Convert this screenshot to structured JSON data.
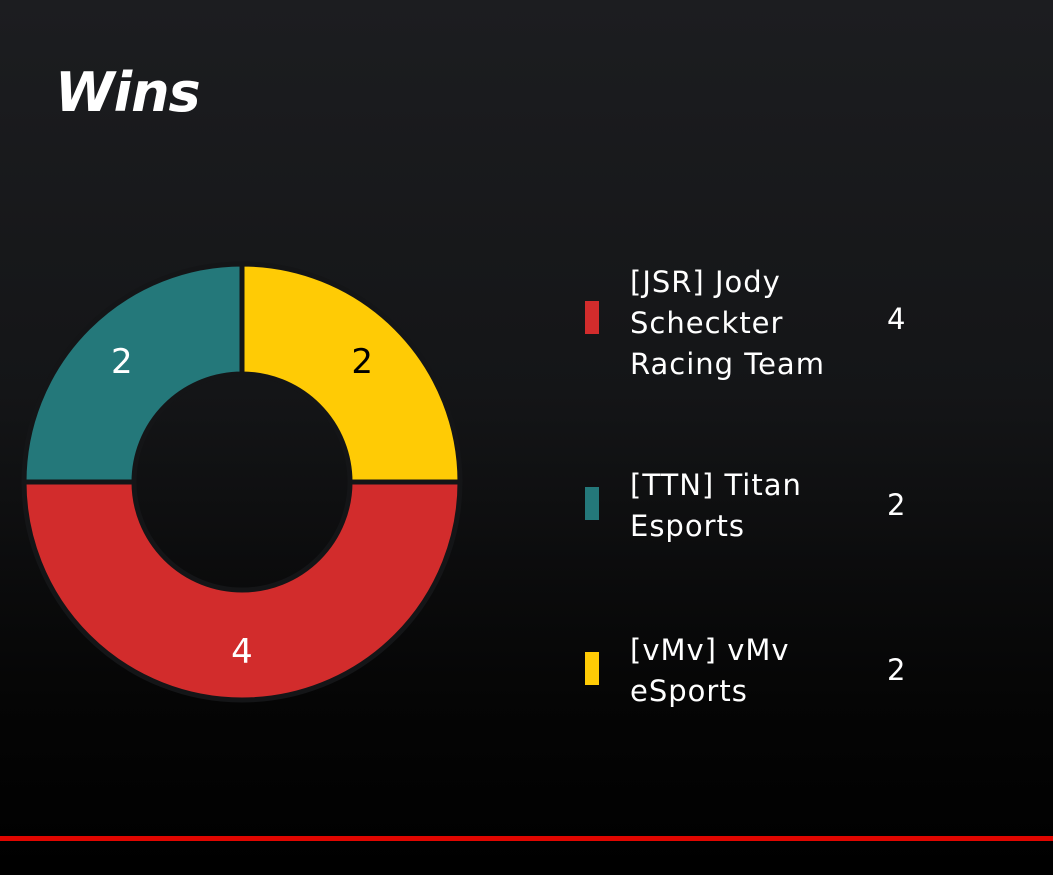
{
  "title": "Wins",
  "colors": {
    "accent_line": "#e10600",
    "background_top": "#1c1d20",
    "background_bottom": "#000000"
  },
  "chart_data": {
    "type": "pie",
    "subtype": "donut",
    "title": "Wins",
    "series": [
      {
        "name": "[JSR] Jody Scheckter Racing Team",
        "value": 4,
        "value_label": "4",
        "color": "#d22c2c",
        "label_color": "#ffffff"
      },
      {
        "name": "[TTN] Titan Esports",
        "value": 2,
        "value_label": "2",
        "color": "#24787a",
        "label_color": "#ffffff"
      },
      {
        "name": "[vMv] vMv eSports",
        "value": 2,
        "value_label": "2",
        "color": "#ffcb05",
        "label_color": "#000000"
      }
    ],
    "legend": "right",
    "slice_order": [
      "[vMv] vMv eSports",
      "[JSR] Jody Scheckter Racing Team",
      "[TTN] Titan Esports"
    ],
    "start_direction": "top",
    "rotation": "clockwise"
  }
}
